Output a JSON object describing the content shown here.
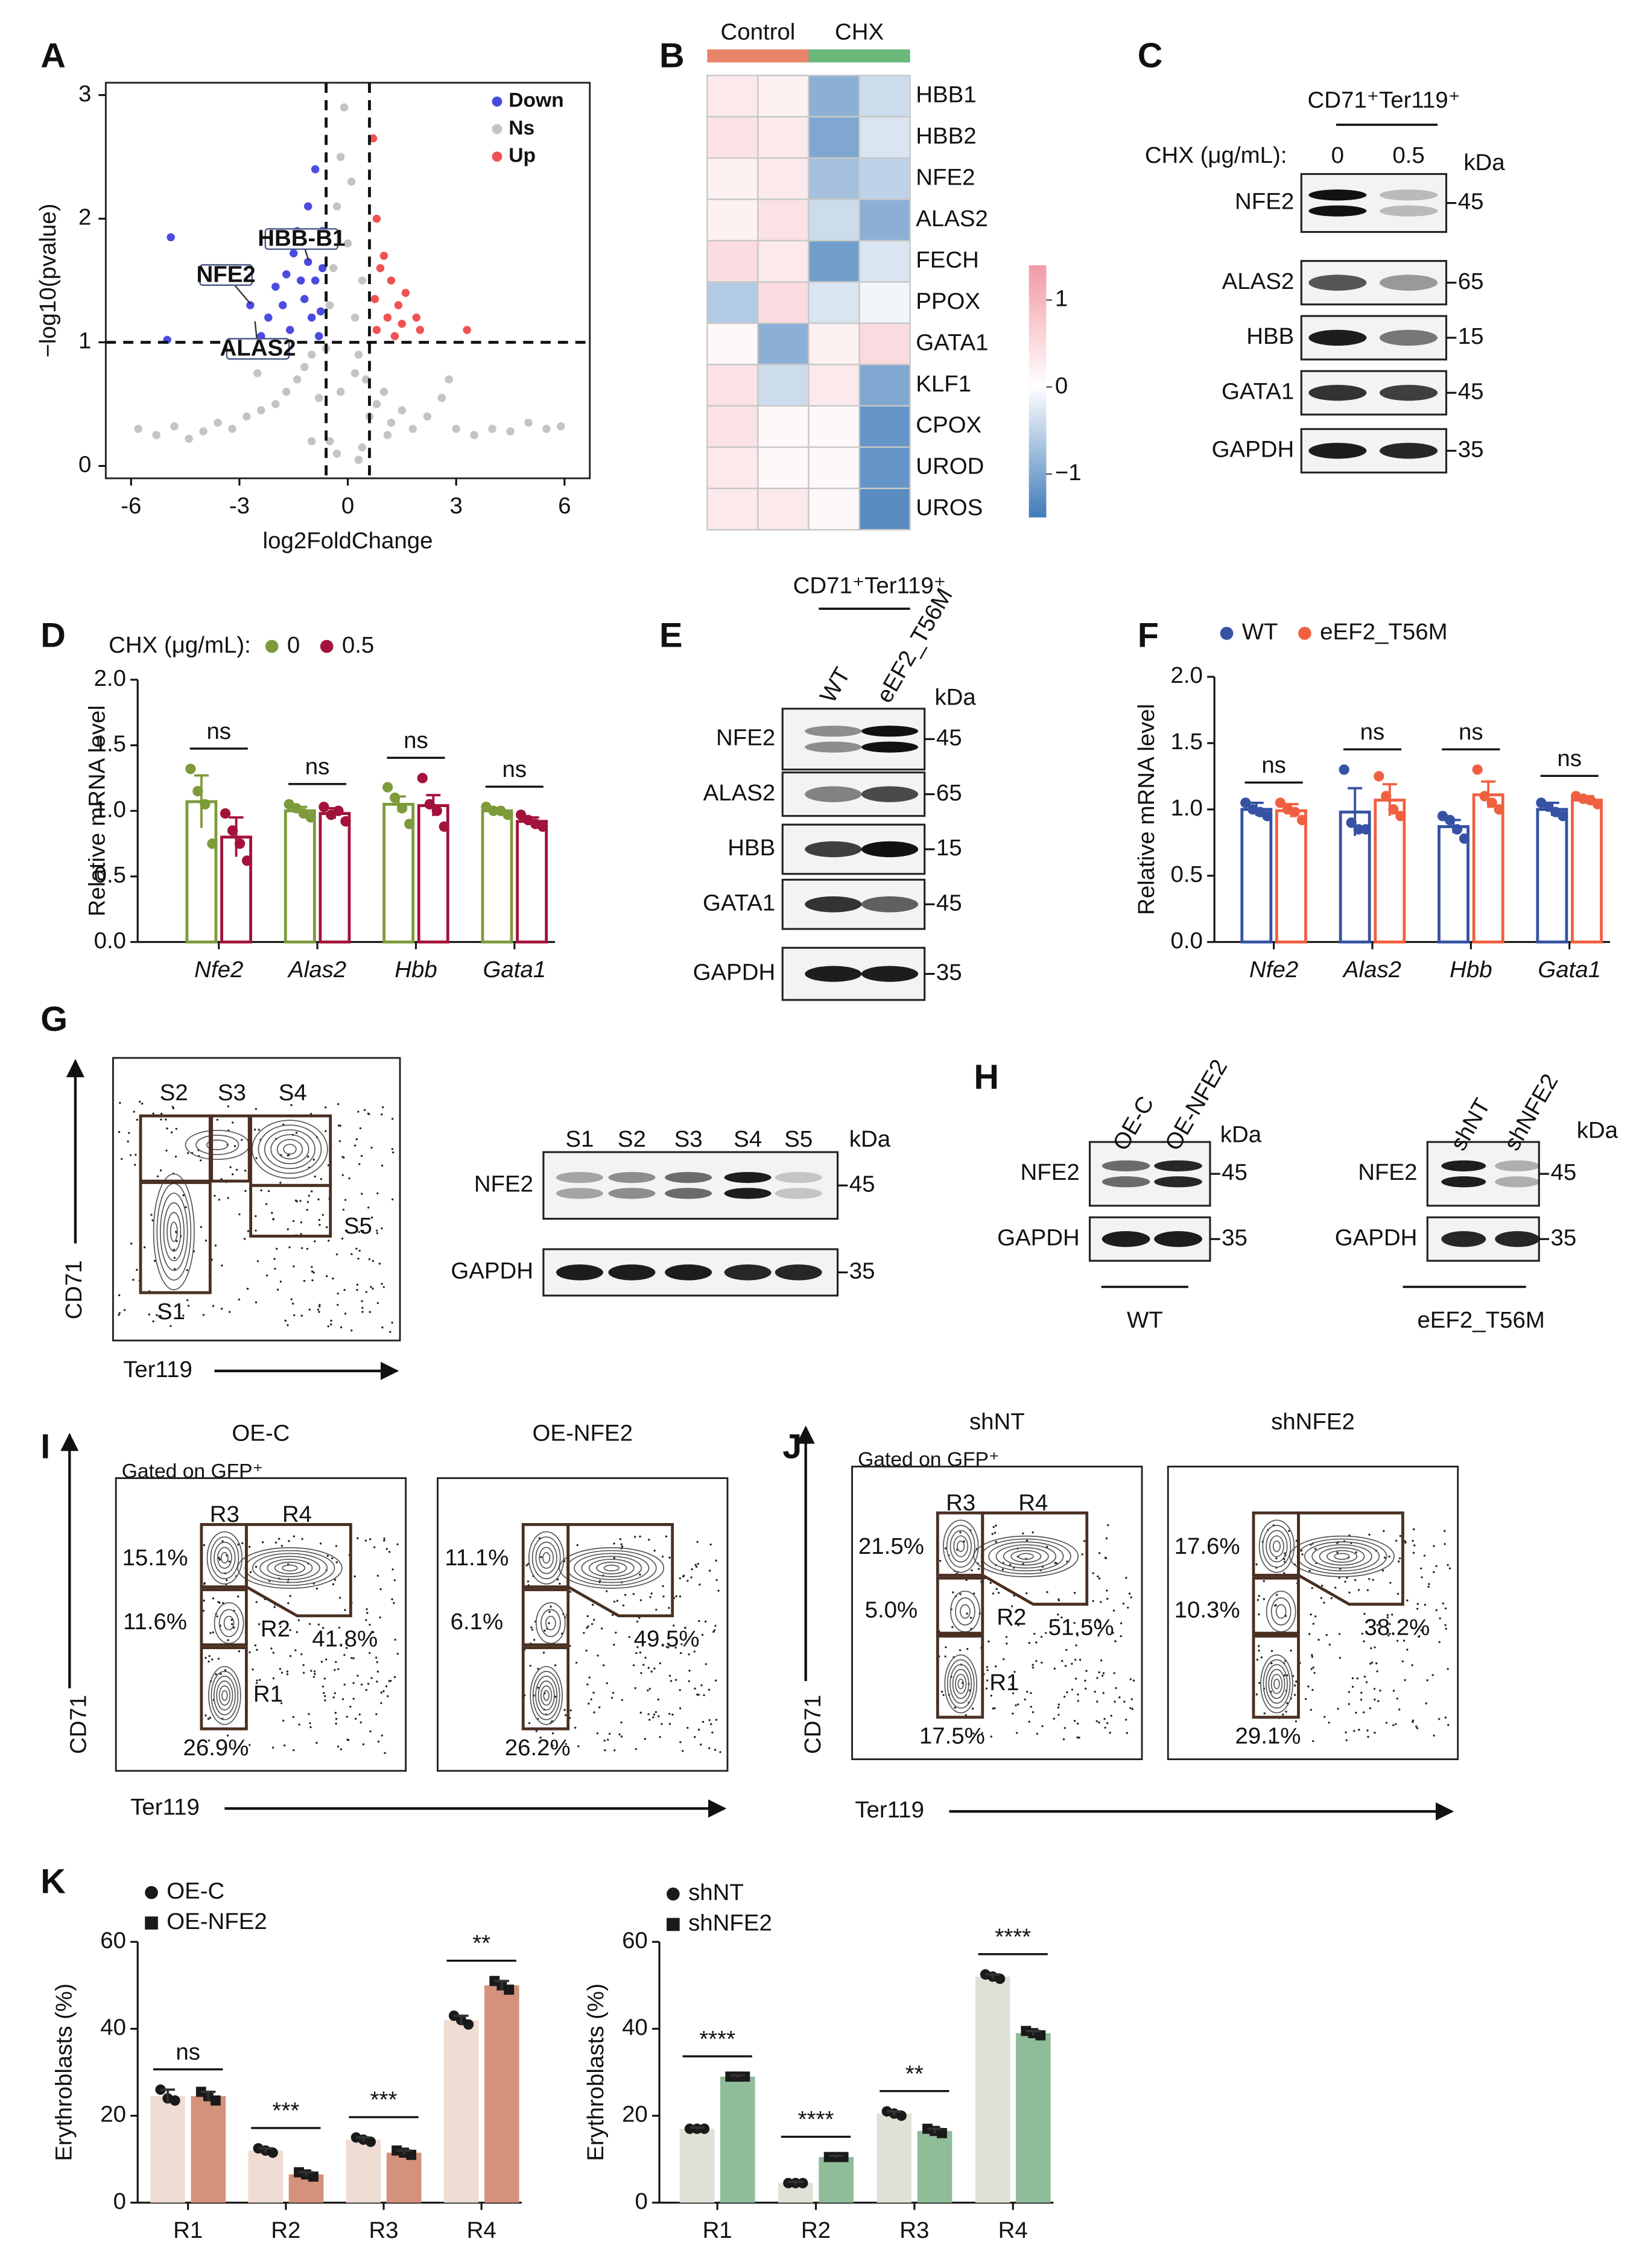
{
  "panel_labels": [
    "A",
    "B",
    "C",
    "D",
    "E",
    "F",
    "G",
    "H",
    "I",
    "J",
    "K"
  ],
  "chart_data": [
    {
      "type": "scatter",
      "xlabel": "log2FoldChange",
      "ylabel": "−log10(pvalue)",
      "legend": "upper right",
      "xlim": [
        -6.7,
        6.7
      ],
      "xticks": [
        -6,
        -3,
        0,
        3,
        6
      ],
      "ylim": [
        -0.1,
        3.1
      ],
      "yticks": [
        0,
        1,
        2,
        3
      ],
      "thresholds": {
        "x": [
          -0.6,
          0.6
        ],
        "y": [
          1
        ]
      },
      "series": [
        {
          "name": "Down",
          "color": "#4b4be0",
          "x": [
            -4.9,
            -1.5,
            -0.9,
            -1.1,
            -0.7,
            -1.3,
            -1.8,
            -2.0,
            -1.0,
            -0.8,
            -1.6,
            -2.4,
            -0.7,
            -1.2,
            -0.9,
            -1.4,
            -2.7,
            -5.0,
            -0.75,
            -1.1,
            -2.2,
            -1.7
          ],
          "y": [
            1.85,
            1.72,
            2.4,
            2.1,
            1.9,
            1.5,
            1.3,
            1.45,
            1.2,
            1.05,
            1.1,
            1.05,
            1.6,
            1.35,
            1.5,
            1.9,
            1.3,
            1.02,
            1.25,
            1.65,
            1.2,
            1.55
          ]
        },
        {
          "name": "Ns",
          "color": "#c4c4c4",
          "x": [
            -5.8,
            -5.3,
            -4.8,
            -4.4,
            -4.0,
            -3.6,
            -3.2,
            -2.8,
            -2.4,
            -2.0,
            -1.7,
            -1.4,
            -1.2,
            -1.0,
            -0.8,
            -0.6,
            -0.5,
            -0.4,
            -0.3,
            -0.2,
            -0.1,
            0,
            0.1,
            0.2,
            0.3,
            0.4,
            0.5,
            0.6,
            0.8,
            1.0,
            1.2,
            1.5,
            1.8,
            2.2,
            2.6,
            3.0,
            3.5,
            4.0,
            4.5,
            5.0,
            5.5,
            5.9,
            -0.3,
            0.3,
            -0.5,
            0.4,
            -0.2,
            0.2,
            -1.0,
            1.1,
            -2.5,
            2.8
          ],
          "y": [
            0.3,
            0.25,
            0.32,
            0.22,
            0.28,
            0.35,
            0.3,
            0.4,
            0.45,
            0.5,
            0.6,
            0.7,
            0.8,
            0.9,
            0.55,
            0.95,
            1.3,
            1.6,
            2.1,
            2.5,
            2.9,
            1.8,
            2.3,
            1.2,
            0.9,
            1.5,
            0.7,
            0.4,
            0.5,
            0.6,
            0.35,
            0.45,
            0.3,
            0.4,
            0.55,
            0.3,
            0.25,
            0.3,
            0.28,
            0.35,
            0.3,
            0.32,
            0.1,
            0.05,
            0.2,
            0.15,
            0.6,
            0.75,
            0.2,
            0.25,
            0.75,
            0.7
          ]
        },
        {
          "name": "Up",
          "color": "#f05252",
          "x": [
            0.7,
            0.8,
            0.9,
            1.2,
            1.4,
            1.1,
            0.75,
            1.6,
            1.9,
            2.0,
            0.8,
            1.3,
            3.3,
            1.0,
            1.5
          ],
          "y": [
            2.65,
            2.0,
            1.6,
            1.5,
            1.3,
            1.2,
            1.35,
            1.4,
            1.2,
            1.1,
            1.1,
            1.05,
            1.1,
            1.7,
            1.15
          ]
        }
      ],
      "annotations": [
        {
          "label": "HBB-B1",
          "x": -1.08,
          "y": 1.66
        },
        {
          "label": "NFE2",
          "x": -2.69,
          "y": 1.31
        },
        {
          "label": "ALAS2",
          "x": -2.57,
          "y": 1.17
        }
      ]
    },
    {
      "type": "heatmap",
      "groups": [
        {
          "name": "Control",
          "color": "#e8846a"
        },
        {
          "name": "CHX",
          "color": "#6cb87a"
        }
      ],
      "rows": [
        "HBB1",
        "HBB2",
        "NFE2",
        "ALAS2",
        "FECH",
        "PPOX",
        "GATA1",
        "KLF1",
        "CPOX",
        "UROD",
        "UROS"
      ],
      "values": [
        [
          0.3,
          0.2,
          -0.9,
          -0.4
        ],
        [
          0.4,
          0.3,
          -1.0,
          -0.3
        ],
        [
          0.2,
          0.3,
          -0.7,
          -0.5
        ],
        [
          0.2,
          0.4,
          -0.4,
          -0.9
        ],
        [
          0.5,
          0.3,
          -1.1,
          -0.3
        ],
        [
          -0.6,
          0.5,
          -0.3,
          -0.1
        ],
        [
          0.1,
          -0.9,
          0.2,
          0.5
        ],
        [
          0.4,
          -0.4,
          0.3,
          -1.0
        ],
        [
          0.4,
          0.1,
          0.1,
          -1.2
        ],
        [
          0.3,
          0.1,
          0.1,
          -1.2
        ],
        [
          0.3,
          0.3,
          0.1,
          -1.3
        ]
      ],
      "zlim": [
        -1.5,
        1.4
      ],
      "zticks": [
        1,
        0,
        {
          "value": -1,
          "label": "−1"
        }
      ],
      "colors": {
        "low": "#3f7bb9",
        "mid": "#ffffff",
        "high": "#f29aa4"
      }
    },
    {
      "type": "bar",
      "style": "outline",
      "ylabel": "Relative mRNA level",
      "legend": "top",
      "legend_title": "CHX (μg/mL):",
      "categories": [
        "Nfe2",
        "Alas2",
        "Hbb",
        "Gata1"
      ],
      "category_style": "italic",
      "ylim": [
        0,
        2
      ],
      "yticks": [
        {
          "value": 0,
          "label": "0.0"
        },
        {
          "value": 0.5,
          "label": "0.5"
        },
        {
          "value": 1,
          "label": "1.0"
        },
        {
          "value": 1.5,
          "label": "1.5"
        },
        {
          "value": 2,
          "label": "2.0"
        }
      ],
      "series": [
        {
          "name": "0",
          "color": "#7d9b3a",
          "values": [
            1.07,
            1.0,
            1.05,
            1.0
          ],
          "errors": [
            0.2,
            0.03,
            0.06,
            0.02
          ],
          "points": [
            [
              1.32,
              1.15,
              1.05,
              0.75
            ],
            [
              1.05,
              1.02,
              0.98,
              0.95
            ],
            [
              1.18,
              1.1,
              1.02,
              0.9
            ],
            [
              1.03,
              1.0,
              1.0,
              0.97
            ]
          ]
        },
        {
          "name": "0.5",
          "color": "#a3123a",
          "values": [
            0.8,
            0.98,
            1.04,
            0.92
          ],
          "errors": [
            0.15,
            0.04,
            0.08,
            0.03
          ],
          "points": [
            [
              0.98,
              0.85,
              0.75,
              0.62
            ],
            [
              1.03,
              0.97,
              1.0,
              0.92
            ],
            [
              1.25,
              1.05,
              1.0,
              0.88
            ],
            [
              0.97,
              0.93,
              0.9,
              0.88
            ]
          ]
        }
      ],
      "annotations": [
        "ns",
        "ns",
        "ns",
        "ns"
      ]
    },
    {
      "type": "bar",
      "style": "outline",
      "ylabel": "Relative mRNA level",
      "legend": "top",
      "categories": [
        "Nfe2",
        "Alas2",
        "Hbb",
        "Gata1"
      ],
      "category_style": "italic",
      "ylim": [
        0,
        2
      ],
      "yticks": [
        {
          "value": 0,
          "label": "0.0"
        },
        {
          "value": 0.5,
          "label": "0.5"
        },
        {
          "value": 1,
          "label": "1.0"
        },
        {
          "value": 1.5,
          "label": "1.5"
        },
        {
          "value": 2,
          "label": "2.0"
        }
      ],
      "series": [
        {
          "name": "WT",
          "color": "#3552a3",
          "values": [
            1.0,
            0.98,
            0.87,
            1.0
          ],
          "errors": [
            0.05,
            0.18,
            0.05,
            0.05
          ],
          "points": [
            [
              1.05,
              1.0,
              0.98,
              0.95
            ],
            [
              1.3,
              0.9,
              0.85,
              0.85
            ],
            [
              0.95,
              0.92,
              0.85,
              0.78
            ],
            [
              1.05,
              1.02,
              0.98,
              0.95
            ]
          ]
        },
        {
          "name": "eEF2_T56M",
          "color": "#f06040",
          "values": [
            0.99,
            1.07,
            1.11,
            1.07
          ],
          "errors": [
            0.05,
            0.12,
            0.1,
            0.03
          ],
          "points": [
            [
              1.05,
              1.0,
              0.98,
              0.92
            ],
            [
              1.25,
              1.1,
              1.0,
              0.95
            ],
            [
              1.3,
              1.1,
              1.05,
              1.0
            ],
            [
              1.1,
              1.08,
              1.07,
              1.04
            ]
          ]
        }
      ],
      "annotations": [
        "ns",
        "ns",
        "ns",
        "ns"
      ]
    },
    {
      "type": "bar",
      "style": "filled",
      "ylabel": "Erythroblasts (%)",
      "legend": "top left",
      "categories": [
        "R1",
        "R2",
        "R3",
        "R4"
      ],
      "point_color": "#1a1a1a",
      "ylim": [
        0,
        60
      ],
      "yticks": [
        0,
        20,
        40,
        60
      ],
      "series": [
        {
          "name": "OE-C",
          "color": "#efdcd2",
          "marker": "circle",
          "values": [
            24.5,
            12,
            14.5,
            42
          ],
          "errors": [
            1.5,
            0.5,
            0.5,
            1
          ],
          "points": [
            [
              26,
              24,
              23.5
            ],
            [
              12.5,
              12,
              11.5
            ],
            [
              15,
              14.5,
              14
            ],
            [
              43,
              42,
              41
            ]
          ]
        },
        {
          "name": "OE-NFE2",
          "color": "#d4917b",
          "marker": "square",
          "values": [
            24.5,
            6.5,
            11.5,
            50
          ],
          "errors": [
            1,
            0.5,
            0.5,
            1
          ],
          "points": [
            [
              25.5,
              24.5,
              23.5
            ],
            [
              7,
              6.5,
              6
            ],
            [
              12,
              11.5,
              11
            ],
            [
              51,
              50,
              49
            ]
          ]
        }
      ],
      "annotations": [
        "ns",
        "***",
        "***",
        "**"
      ]
    },
    {
      "type": "bar",
      "style": "filled",
      "ylabel": "Erythroblasts (%)",
      "legend": "top left",
      "categories": [
        "R1",
        "R2",
        "R3",
        "R4"
      ],
      "point_color": "#1a1a1a",
      "ylim": [
        0,
        60
      ],
      "yticks": [
        0,
        20,
        40,
        60
      ],
      "series": [
        {
          "name": "shNT",
          "color": "#dfe1d7",
          "marker": "circle",
          "values": [
            17,
            4.5,
            20.5,
            52
          ],
          "errors": [
            0.3,
            0.3,
            0.5,
            0.5
          ],
          "points": [
            [
              17,
              17,
              17
            ],
            [
              4.5,
              4.5,
              4.5
            ],
            [
              21,
              20.5,
              20
            ],
            [
              52.5,
              52,
              51.5
            ]
          ]
        },
        {
          "name": "shNFE2",
          "color": "#8fbc99",
          "marker": "square",
          "values": [
            29,
            10.5,
            16.5,
            39
          ],
          "errors": [
            0.3,
            0.3,
            0.5,
            0.5
          ],
          "points": [
            [
              29,
              29,
              29
            ],
            [
              10.5,
              10.5,
              10.5
            ],
            [
              17,
              16.5,
              16
            ],
            [
              39.5,
              39,
              38.5
            ]
          ]
        }
      ],
      "annotations": [
        "****",
        "****",
        "**",
        "****"
      ]
    }
  ],
  "blots": [
    {
      "header": "CD71⁺Ter119⁺",
      "treatment": "CHX (μg/mL):",
      "lanes": [
        "0",
        "0.5"
      ],
      "unit": "kDa",
      "rows": [
        {
          "name": "NFE2",
          "kda": "45"
        },
        {
          "name": "ALAS2",
          "kda": "65"
        },
        {
          "name": "HBB",
          "kda": "15"
        },
        {
          "name": "GATA1",
          "kda": "45"
        },
        {
          "name": "GAPDH",
          "kda": "35"
        }
      ]
    },
    {
      "header": "CD71⁺Ter119⁺",
      "lanes": [
        "WT",
        "eEF2_T56M"
      ],
      "unit": "kDa",
      "rows": [
        {
          "name": "NFE2",
          "kda": "45"
        },
        {
          "name": "ALAS2",
          "kda": "65"
        },
        {
          "name": "HBB",
          "kda": "15"
        },
        {
          "name": "GATA1",
          "kda": "45"
        },
        {
          "name": "GAPDH",
          "kda": "35"
        }
      ]
    },
    {
      "lanes": [
        "S1",
        "S2",
        "S3",
        "S4",
        "S5"
      ],
      "unit": "kDa",
      "rows": [
        {
          "name": "NFE2",
          "kda": "45"
        },
        {
          "name": "GAPDH",
          "kda": "35"
        }
      ]
    },
    {
      "lanes": [
        "OE-C",
        "OE-NFE2"
      ],
      "unit": "kDa",
      "group": "WT",
      "rows": [
        {
          "name": "NFE2",
          "kda": "45"
        },
        {
          "name": "GAPDH",
          "kda": "35"
        }
      ]
    },
    {
      "lanes": [
        "shNT",
        "shNFE2"
      ],
      "unit": "kDa",
      "group": "eEF2_T56M",
      "rows": [
        {
          "name": "NFE2",
          "kda": "45"
        },
        {
          "name": "GAPDH",
          "kda": "35"
        }
      ]
    }
  ],
  "flow": [
    {
      "y_axis": "CD71",
      "x_axis": "Ter119",
      "gates": [
        "S1",
        "S2",
        "S3",
        "S4",
        "S5"
      ]
    },
    {
      "gating": "Gated on GFP⁺",
      "y_axis": "CD71",
      "x_axis": "Ter119",
      "gates": [
        "R1",
        "R2",
        "R3",
        "R4"
      ],
      "plots": [
        {
          "title": "OE-C",
          "percentages": [
            "26.9%",
            "11.6%",
            "15.1%",
            "41.8%"
          ]
        },
        {
          "title": "OE-NFE2",
          "percentages": [
            "26.2%",
            "6.1%",
            "11.1%",
            "49.5%"
          ]
        }
      ]
    },
    {
      "gating": "Gated on GFP⁺",
      "y_axis": "CD71",
      "x_axis": "Ter119",
      "gates": [
        "R1",
        "R2",
        "R3",
        "R4"
      ],
      "plots": [
        {
          "title": "shNT",
          "percentages": [
            "17.5%",
            "5.0%",
            "21.5%",
            "51.5%"
          ]
        },
        {
          "title": "shNFE2",
          "percentages": [
            "29.1%",
            "10.3%",
            "17.6%",
            "38.2%"
          ]
        }
      ]
    }
  ]
}
